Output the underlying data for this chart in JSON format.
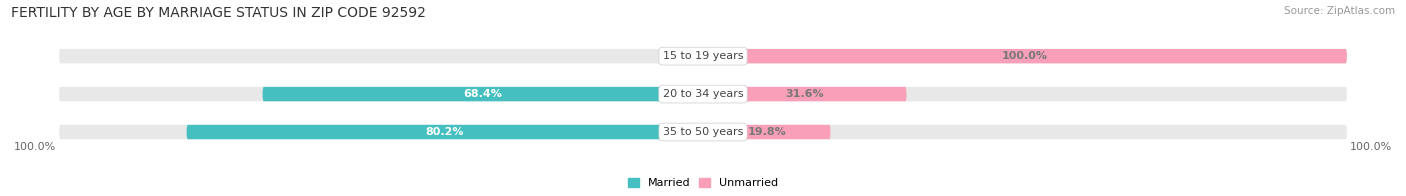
{
  "title": "FERTILITY BY AGE BY MARRIAGE STATUS IN ZIP CODE 92592",
  "source": "Source: ZipAtlas.com",
  "categories": [
    "15 to 19 years",
    "20 to 34 years",
    "35 to 50 years"
  ],
  "married_pct": [
    0.0,
    68.4,
    80.2
  ],
  "unmarried_pct": [
    100.0,
    31.6,
    19.8
  ],
  "married_color": "#45bfc0",
  "unmarried_color": "#f9a0b8",
  "bar_bg_color": "#e8e8e8",
  "title_fontsize": 10,
  "source_fontsize": 7.5,
  "label_fontsize": 8,
  "cat_fontsize": 8,
  "axis_label_fontsize": 8,
  "bar_height": 0.38,
  "figsize": [
    14.06,
    1.96
  ],
  "dpi": 100,
  "x_left_label": "100.0%",
  "x_right_label": "100.0%"
}
